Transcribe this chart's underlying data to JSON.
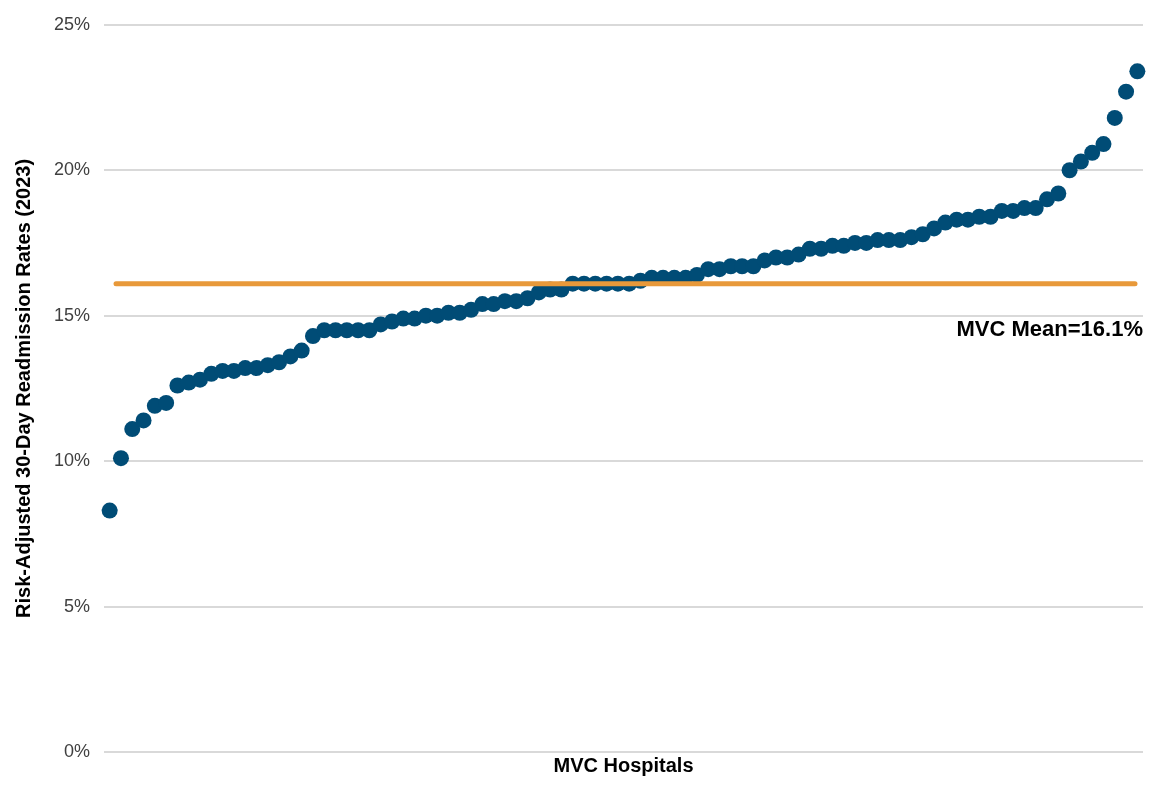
{
  "chart_data": {
    "type": "scatter",
    "xlabel": "MVC Hospitals",
    "ylabel": "Risk-Adjusted 30-Day Readmission Rates (2023)",
    "categories": [
      null,
      null,
      null,
      null,
      null,
      null,
      null,
      null,
      null,
      null,
      null,
      null,
      null,
      null,
      null,
      null,
      null,
      null,
      null,
      null,
      null,
      null,
      null,
      null,
      null,
      null,
      null,
      null,
      null,
      null,
      null,
      null,
      null,
      null,
      null,
      null,
      null,
      null,
      null,
      null,
      null,
      null,
      null,
      null,
      null,
      null,
      null,
      null,
      null,
      null,
      null,
      null,
      null,
      null,
      null,
      null,
      null,
      null,
      null,
      null,
      null,
      null,
      null,
      null,
      null,
      null,
      null,
      null,
      null,
      null,
      null,
      null,
      null,
      null,
      null,
      null,
      null,
      null,
      null,
      null,
      null,
      null,
      null,
      null,
      null,
      null,
      null,
      null,
      null,
      null,
      null,
      null
    ],
    "series": [
      {
        "color": "#004c76",
        "values": [
          8.3,
          10.1,
          11.1,
          11.4,
          11.9,
          12.0,
          12.6,
          12.7,
          12.8,
          13.0,
          13.1,
          13.1,
          13.2,
          13.2,
          13.3,
          13.4,
          13.6,
          13.8,
          14.3,
          14.5,
          14.5,
          14.5,
          14.5,
          14.5,
          14.7,
          14.8,
          14.9,
          14.9,
          15.0,
          15.0,
          15.1,
          15.1,
          15.2,
          15.4,
          15.4,
          15.5,
          15.5,
          15.6,
          15.8,
          15.9,
          15.9,
          16.1,
          16.1,
          16.1,
          16.1,
          16.1,
          16.1,
          16.2,
          16.3,
          16.3,
          16.3,
          16.3,
          16.4,
          16.6,
          16.6,
          16.7,
          16.7,
          16.7,
          16.9,
          17.0,
          17.0,
          17.1,
          17.3,
          17.3,
          17.4,
          17.4,
          17.5,
          17.5,
          17.6,
          17.6,
          17.6,
          17.7,
          17.8,
          18.0,
          18.2,
          18.3,
          18.3,
          18.4,
          18.4,
          18.6,
          18.6,
          18.7,
          18.7,
          19.0,
          19.2,
          20.0,
          20.3,
          20.6,
          20.9,
          21.8,
          22.7,
          23.4
        ]
      }
    ],
    "ylim": [
      0,
      25
    ],
    "yticks": [
      {
        "value": 0,
        "label": "0%"
      },
      {
        "value": 5,
        "label": "5%"
      },
      {
        "value": 10,
        "label": "10%"
      },
      {
        "value": 15,
        "label": "15%"
      },
      {
        "value": 20,
        "label": "20%"
      },
      {
        "value": 25,
        "label": "25%"
      }
    ],
    "grid": "y",
    "marker": "circle",
    "tick_labels": "y",
    "ref_lines": [
      {
        "axis": "y",
        "value": 16.1,
        "label": "MVC Mean=16.1%",
        "color": "#e8993a"
      }
    ]
  }
}
